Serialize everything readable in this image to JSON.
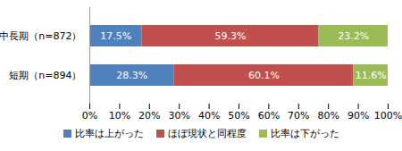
{
  "chart_data": {
    "type": "bar",
    "orientation": "horizontal",
    "stacked": true,
    "data_labels": true,
    "grid": false,
    "legend": "bottom",
    "categories": [
      "中長期（n=872）",
      "短期（n=894）"
    ],
    "series": [
      {
        "name": "比率は上がった",
        "color": "#4f81bd",
        "values": [
          17.5,
          28.3
        ],
        "value_labels": [
          "17.5%",
          "28.3%"
        ]
      },
      {
        "name": "ほぼ現状と同程度",
        "color": "#c0504d",
        "values": [
          59.3,
          60.1
        ],
        "value_labels": [
          "59.3%",
          "60.1%"
        ]
      },
      {
        "name": "比率は下がった",
        "color": "#9bbb59",
        "values": [
          23.2,
          11.6
        ],
        "value_labels": [
          "23.2%",
          "11.6%"
        ]
      }
    ],
    "xlim": [
      0,
      100
    ],
    "xticks": [
      {
        "value": 0,
        "label": "0%"
      },
      {
        "value": 10,
        "label": "10%"
      },
      {
        "value": 20,
        "label": "20%"
      },
      {
        "value": 30,
        "label": "30%"
      },
      {
        "value": 40,
        "label": "40%"
      },
      {
        "value": 50,
        "label": "50%"
      },
      {
        "value": 60,
        "label": "60%"
      },
      {
        "value": 70,
        "label": "70%"
      },
      {
        "value": 80,
        "label": "80%"
      },
      {
        "value": 90,
        "label": "90%"
      },
      {
        "value": 100,
        "label": "100%"
      }
    ]
  }
}
